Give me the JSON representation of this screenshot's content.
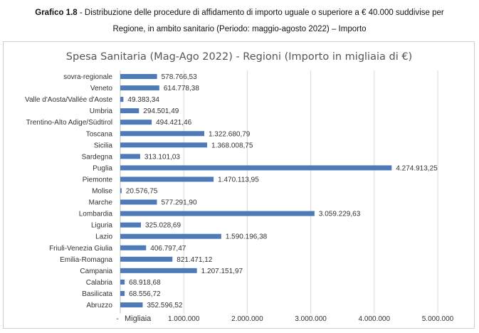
{
  "caption": {
    "label": "Grafico 1.8",
    "line1": " - Distribuzione delle procedure di affidamento di importo uguale o superiore a € 40.000 suddivise per",
    "line2": "Regione, in ambito sanitario (Periodo: maggio-agosto 2022) – Importo"
  },
  "chart_data": {
    "type": "bar",
    "orientation": "horizontal",
    "title": "Spesa Sanitaria (Mag-Ago 2022) - Regioni (Importo in migliaia  di €)",
    "xlabel": "Migliaia",
    "categories": [
      "sovra-regionale",
      "Veneto",
      "Valle d'Aosta/Vallée d'Aoste",
      "Umbria",
      "Trentino-Alto Adige/Südtirol",
      "Toscana",
      "Sicilia",
      "Sardegna",
      "Puglia",
      "Piemonte",
      "Molise",
      "Marche",
      "Lombardia",
      "Liguria",
      "Lazio",
      "Friuli-Venezia Giulia",
      "Emilia-Romagna",
      "Campania",
      "Calabria",
      "Basilicata",
      "Abruzzo"
    ],
    "values": [
      578766.53,
      614778.38,
      49383.34,
      294501.49,
      494421.46,
      1322680.79,
      1368008.75,
      313101.03,
      4274913.25,
      1470113.95,
      20576.75,
      577291.9,
      3059229.63,
      325028.69,
      1590196.38,
      406797.47,
      821471.12,
      1207151.97,
      68918.68,
      68556.72,
      352596.52
    ],
    "value_labels": [
      "578.766,53",
      "614.778,38",
      "49.383,34",
      "294.501,49",
      "494.421,46",
      "1.322.680,79",
      "1.368.008,75",
      "313.101,03",
      "4.274.913,25",
      "1.470.113,95",
      "20.576,75",
      "577.291,90",
      "3.059.229,63",
      "325.028,69",
      "1.590.196,38",
      "406.797,47",
      "821.471,12",
      "1.207.151,97",
      "68.918,68",
      "68.556,72",
      "352.596,52"
    ],
    "xticks": [
      0,
      1000000,
      2000000,
      3000000,
      4000000,
      5000000
    ],
    "xtick_labels": [
      "-",
      "1.000.000",
      "2.000.000",
      "3.000.000",
      "4.000.000",
      "5.000.000"
    ],
    "xlim": [
      0,
      5000000
    ],
    "grid": true,
    "bar_color": "#4e7ab7"
  }
}
